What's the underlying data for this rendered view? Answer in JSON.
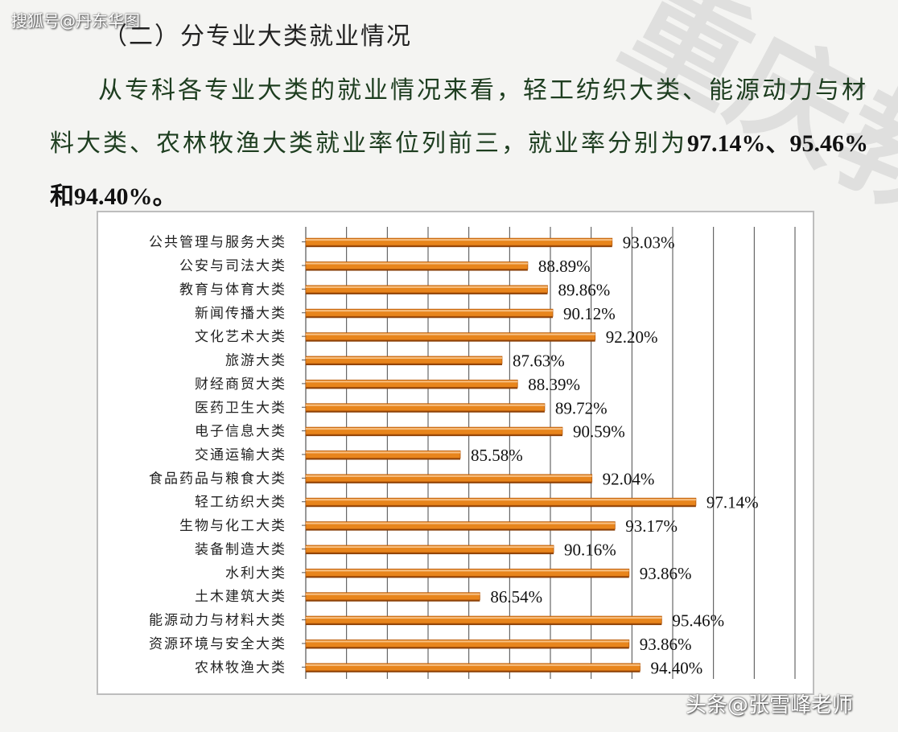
{
  "watermark_top": "搜狐号@丹东华图",
  "watermark_bottom": "头条@张雪峰老师",
  "background_mark": "重庆教育",
  "section_heading": "（二）分专业大类就业情况",
  "paragraph": {
    "text": "从专科各专业大类的就业情况来看，轻工纺织大类、能源动力与材料大类、农林牧渔大类就业率位列前三，就业率分别为",
    "highlight": "97.14%、95.46%和94.40%。"
  },
  "chart_data": {
    "type": "bar",
    "orientation": "horizontal",
    "bar_color": "#e8851c",
    "categories": [
      "公共管理与服务大类",
      "公安与司法大类",
      "教育与体育大类",
      "新闻传播大类",
      "文化艺术大类",
      "旅游大类",
      "财经商贸大类",
      "医药卫生大类",
      "电子信息大类",
      "交通运输大类",
      "食品药品与粮食大类",
      "轻工纺织大类",
      "生物与化工大类",
      "装备制造大类",
      "水利大类",
      "土木建筑大类",
      "能源动力与材料大类",
      "资源环境与安全大类",
      "农林牧渔大类"
    ],
    "values": [
      93.03,
      88.89,
      89.86,
      90.12,
      92.2,
      87.63,
      88.39,
      89.72,
      90.59,
      85.58,
      92.04,
      97.14,
      93.17,
      90.16,
      93.86,
      86.54,
      95.46,
      93.86,
      94.4
    ],
    "labels": [
      "93.03%",
      "88.89%",
      "89.86%",
      "90.12%",
      "92.20%",
      "87.63%",
      "88.39%",
      "89.72%",
      "90.59%",
      "85.58%",
      "92.04%",
      "97.14%",
      "93.17%",
      "90.16%",
      "93.86%",
      "86.54%",
      "95.46%",
      "93.86%",
      "94.40%"
    ],
    "xlim": [
      78,
      102
    ],
    "grid_values": [
      78,
      80,
      82,
      84,
      86,
      88,
      90,
      92,
      94,
      96,
      98,
      100,
      102
    ],
    "grid": true,
    "legend": "none"
  }
}
